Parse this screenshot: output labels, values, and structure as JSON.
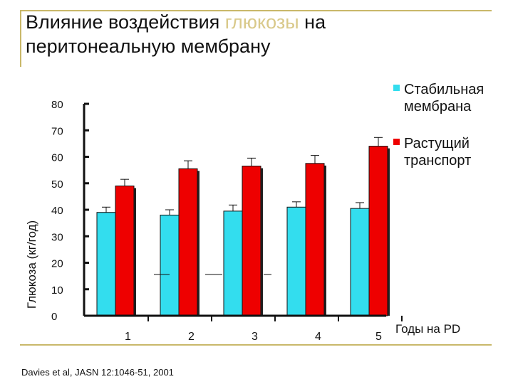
{
  "page": {
    "title_part1": "Влияние воздействия ",
    "title_highlight": "глюкозы",
    "title_part2": " на",
    "title_line2": "перитонеальную мембрану",
    "citation": "Davies et al, JASN 12:1046-51, 2001"
  },
  "chart_data": {
    "type": "bar",
    "categories": [
      "1",
      "2",
      "3",
      "4",
      "5"
    ],
    "series": [
      {
        "name": "Стабильная мембрана",
        "color": "#33ddee",
        "values": [
          39,
          38,
          39.5,
          41,
          40.5
        ],
        "errors": [
          2,
          2,
          2.3,
          2,
          2.2
        ]
      },
      {
        "name": "Растущий транспорт",
        "color": "#ee0000",
        "values": [
          49,
          55.5,
          56.5,
          57.5,
          64
        ],
        "errors": [
          2.5,
          3,
          3,
          3,
          3.3
        ]
      }
    ],
    "ylabel": "Глюкоза (кг/год)",
    "xlabel": "Годы на PD",
    "ylim": [
      0,
      80
    ],
    "yticks": [
      "0",
      "10",
      "20",
      "30",
      "40",
      "50",
      "60",
      "70",
      "80"
    ],
    "legend_position": "top-right"
  },
  "legend": {
    "items": [
      {
        "line1": "Стабильная",
        "line2": "мембрана",
        "color": "#33ddee"
      },
      {
        "line1": "Растущий",
        "line2": "транспорт",
        "color": "#ee0000"
      }
    ]
  }
}
